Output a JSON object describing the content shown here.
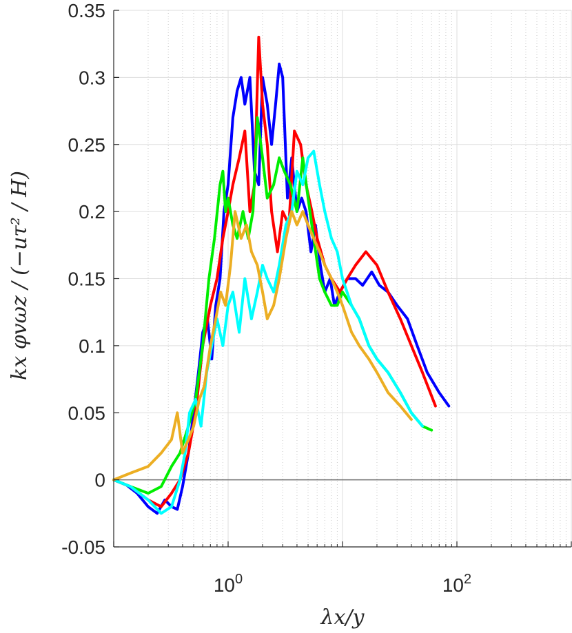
{
  "chart_data": {
    "type": "line",
    "title": "",
    "xlabel": "λx/y",
    "ylabel": "kx φvωz / (−uτ² / H)",
    "xscale": "log",
    "xlim": [
      0.1,
      1000
    ],
    "ylim": [
      -0.05,
      0.35
    ],
    "grid": true,
    "legend": "none",
    "x_ticks": [
      {
        "value": 1,
        "base": "10",
        "exp": "0"
      },
      {
        "value": 100,
        "base": "10",
        "exp": "2"
      }
    ],
    "y_ticks": [
      "-0.05",
      "0",
      "0.05",
      "0.1",
      "0.15",
      "0.2",
      "0.25",
      "0.3",
      "0.35"
    ],
    "zero_line_color": "#6e6e6e",
    "series": [
      {
        "color": "#0000ff",
        "x": [
          0.1,
          0.13,
          0.16,
          0.2,
          0.24,
          0.28,
          0.32,
          0.36,
          0.4,
          0.45,
          0.5,
          0.55,
          0.6,
          0.66,
          0.72,
          0.78,
          0.85,
          0.92,
          1.0,
          1.1,
          1.2,
          1.3,
          1.4,
          1.55,
          1.7,
          1.85,
          2.0,
          2.2,
          2.4,
          2.6,
          2.8,
          3.0,
          3.3,
          3.6,
          4.0,
          4.4,
          4.8,
          5.3,
          5.8,
          6.4,
          7.0,
          7.8,
          8.5,
          9.5,
          11,
          13,
          15,
          18,
          21,
          25,
          30,
          37,
          45,
          55,
          70,
          85
        ],
        "y": [
          0.0,
          -0.004,
          -0.01,
          -0.02,
          -0.025,
          -0.015,
          -0.02,
          -0.022,
          -0.005,
          0.02,
          0.05,
          0.08,
          0.11,
          0.12,
          0.09,
          0.13,
          0.15,
          0.2,
          0.22,
          0.27,
          0.29,
          0.3,
          0.28,
          0.3,
          0.23,
          0.22,
          0.3,
          0.28,
          0.25,
          0.28,
          0.31,
          0.3,
          0.21,
          0.24,
          0.2,
          0.21,
          0.2,
          0.17,
          0.19,
          0.16,
          0.14,
          0.15,
          0.13,
          0.14,
          0.15,
          0.15,
          0.145,
          0.155,
          0.145,
          0.14,
          0.13,
          0.12,
          0.1,
          0.08,
          0.065,
          0.055
        ]
      },
      {
        "color": "#ff0000",
        "x": [
          0.1,
          0.14,
          0.2,
          0.26,
          0.32,
          0.38,
          0.45,
          0.52,
          0.6,
          0.7,
          0.8,
          0.9,
          1.0,
          1.1,
          1.25,
          1.4,
          1.55,
          1.7,
          1.85,
          2.0,
          2.2,
          2.4,
          2.7,
          3.0,
          3.4,
          3.8,
          4.3,
          4.8,
          5.4,
          6.0,
          7.0,
          8.0,
          9.5,
          11,
          13,
          16,
          20,
          25,
          32,
          40,
          50,
          65
        ],
        "y": [
          0.0,
          -0.005,
          -0.015,
          -0.02,
          -0.01,
          0.0,
          0.02,
          0.05,
          0.1,
          0.13,
          0.15,
          0.18,
          0.2,
          0.22,
          0.24,
          0.26,
          0.2,
          0.22,
          0.33,
          0.28,
          0.25,
          0.2,
          0.17,
          0.2,
          0.19,
          0.26,
          0.25,
          0.22,
          0.2,
          0.18,
          0.16,
          0.15,
          0.14,
          0.15,
          0.16,
          0.17,
          0.16,
          0.14,
          0.12,
          0.1,
          0.08,
          0.055
        ]
      },
      {
        "color": "#00ee00",
        "x": [
          0.1,
          0.14,
          0.2,
          0.26,
          0.32,
          0.38,
          0.45,
          0.52,
          0.6,
          0.68,
          0.76,
          0.85,
          0.9,
          0.95,
          1.0,
          1.1,
          1.2,
          1.35,
          1.5,
          1.65,
          1.8,
          2.0,
          2.2,
          2.5,
          2.8,
          3.1,
          3.5,
          4.0,
          4.5,
          5.0,
          5.6,
          6.3,
          7.0,
          8.0,
          9.0,
          10,
          12,
          14,
          17,
          20,
          25,
          32,
          40,
          50,
          60
        ],
        "y": [
          0.0,
          -0.005,
          -0.01,
          -0.005,
          0.01,
          0.02,
          0.04,
          0.06,
          0.1,
          0.15,
          0.18,
          0.22,
          0.23,
          0.2,
          0.21,
          0.19,
          0.18,
          0.2,
          0.18,
          0.2,
          0.27,
          0.24,
          0.21,
          0.22,
          0.24,
          0.23,
          0.22,
          0.2,
          0.24,
          0.21,
          0.18,
          0.15,
          0.14,
          0.13,
          0.13,
          0.14,
          0.13,
          0.12,
          0.1,
          0.09,
          0.08,
          0.065,
          0.05,
          0.04,
          0.037
        ]
      },
      {
        "color": "#00ffff",
        "x": [
          0.1,
          0.14,
          0.2,
          0.26,
          0.32,
          0.38,
          0.42,
          0.46,
          0.52,
          0.58,
          0.65,
          0.72,
          0.8,
          0.9,
          1.0,
          1.1,
          1.25,
          1.4,
          1.6,
          1.8,
          2.0,
          2.2,
          2.5,
          2.8,
          3.2,
          3.6,
          4.0,
          4.5,
          5.0,
          5.6,
          6.3,
          7.0,
          8.0,
          9.0,
          10,
          12,
          14,
          17,
          20,
          25,
          32,
          40,
          50
        ],
        "y": [
          0.0,
          -0.005,
          -0.015,
          -0.025,
          -0.02,
          0.0,
          0.02,
          0.05,
          0.06,
          0.04,
          0.08,
          0.1,
          0.12,
          0.1,
          0.13,
          0.14,
          0.11,
          0.15,
          0.12,
          0.14,
          0.16,
          0.15,
          0.14,
          0.16,
          0.19,
          0.2,
          0.23,
          0.22,
          0.24,
          0.245,
          0.22,
          0.2,
          0.18,
          0.17,
          0.15,
          0.13,
          0.12,
          0.1,
          0.09,
          0.08,
          0.065,
          0.05,
          0.04
        ]
      },
      {
        "color": "#ecae23",
        "x": [
          0.1,
          0.14,
          0.2,
          0.26,
          0.32,
          0.36,
          0.4,
          0.45,
          0.5,
          0.56,
          0.62,
          0.7,
          0.78,
          0.86,
          0.95,
          1.05,
          1.15,
          1.3,
          1.45,
          1.6,
          1.8,
          2.0,
          2.2,
          2.5,
          2.8,
          3.2,
          3.6,
          4.0,
          4.5,
          5.0,
          5.6,
          6.3,
          7.0,
          8.0,
          9.0,
          10,
          12,
          14,
          17,
          20,
          25,
          32,
          40
        ],
        "y": [
          0.0,
          0.005,
          0.01,
          0.02,
          0.03,
          0.05,
          0.02,
          0.03,
          0.04,
          0.06,
          0.07,
          0.1,
          0.12,
          0.14,
          0.13,
          0.16,
          0.2,
          0.18,
          0.19,
          0.17,
          0.16,
          0.14,
          0.12,
          0.13,
          0.15,
          0.18,
          0.2,
          0.19,
          0.2,
          0.19,
          0.18,
          0.17,
          0.16,
          0.15,
          0.14,
          0.13,
          0.11,
          0.1,
          0.09,
          0.08,
          0.065,
          0.055,
          0.045
        ]
      }
    ]
  }
}
